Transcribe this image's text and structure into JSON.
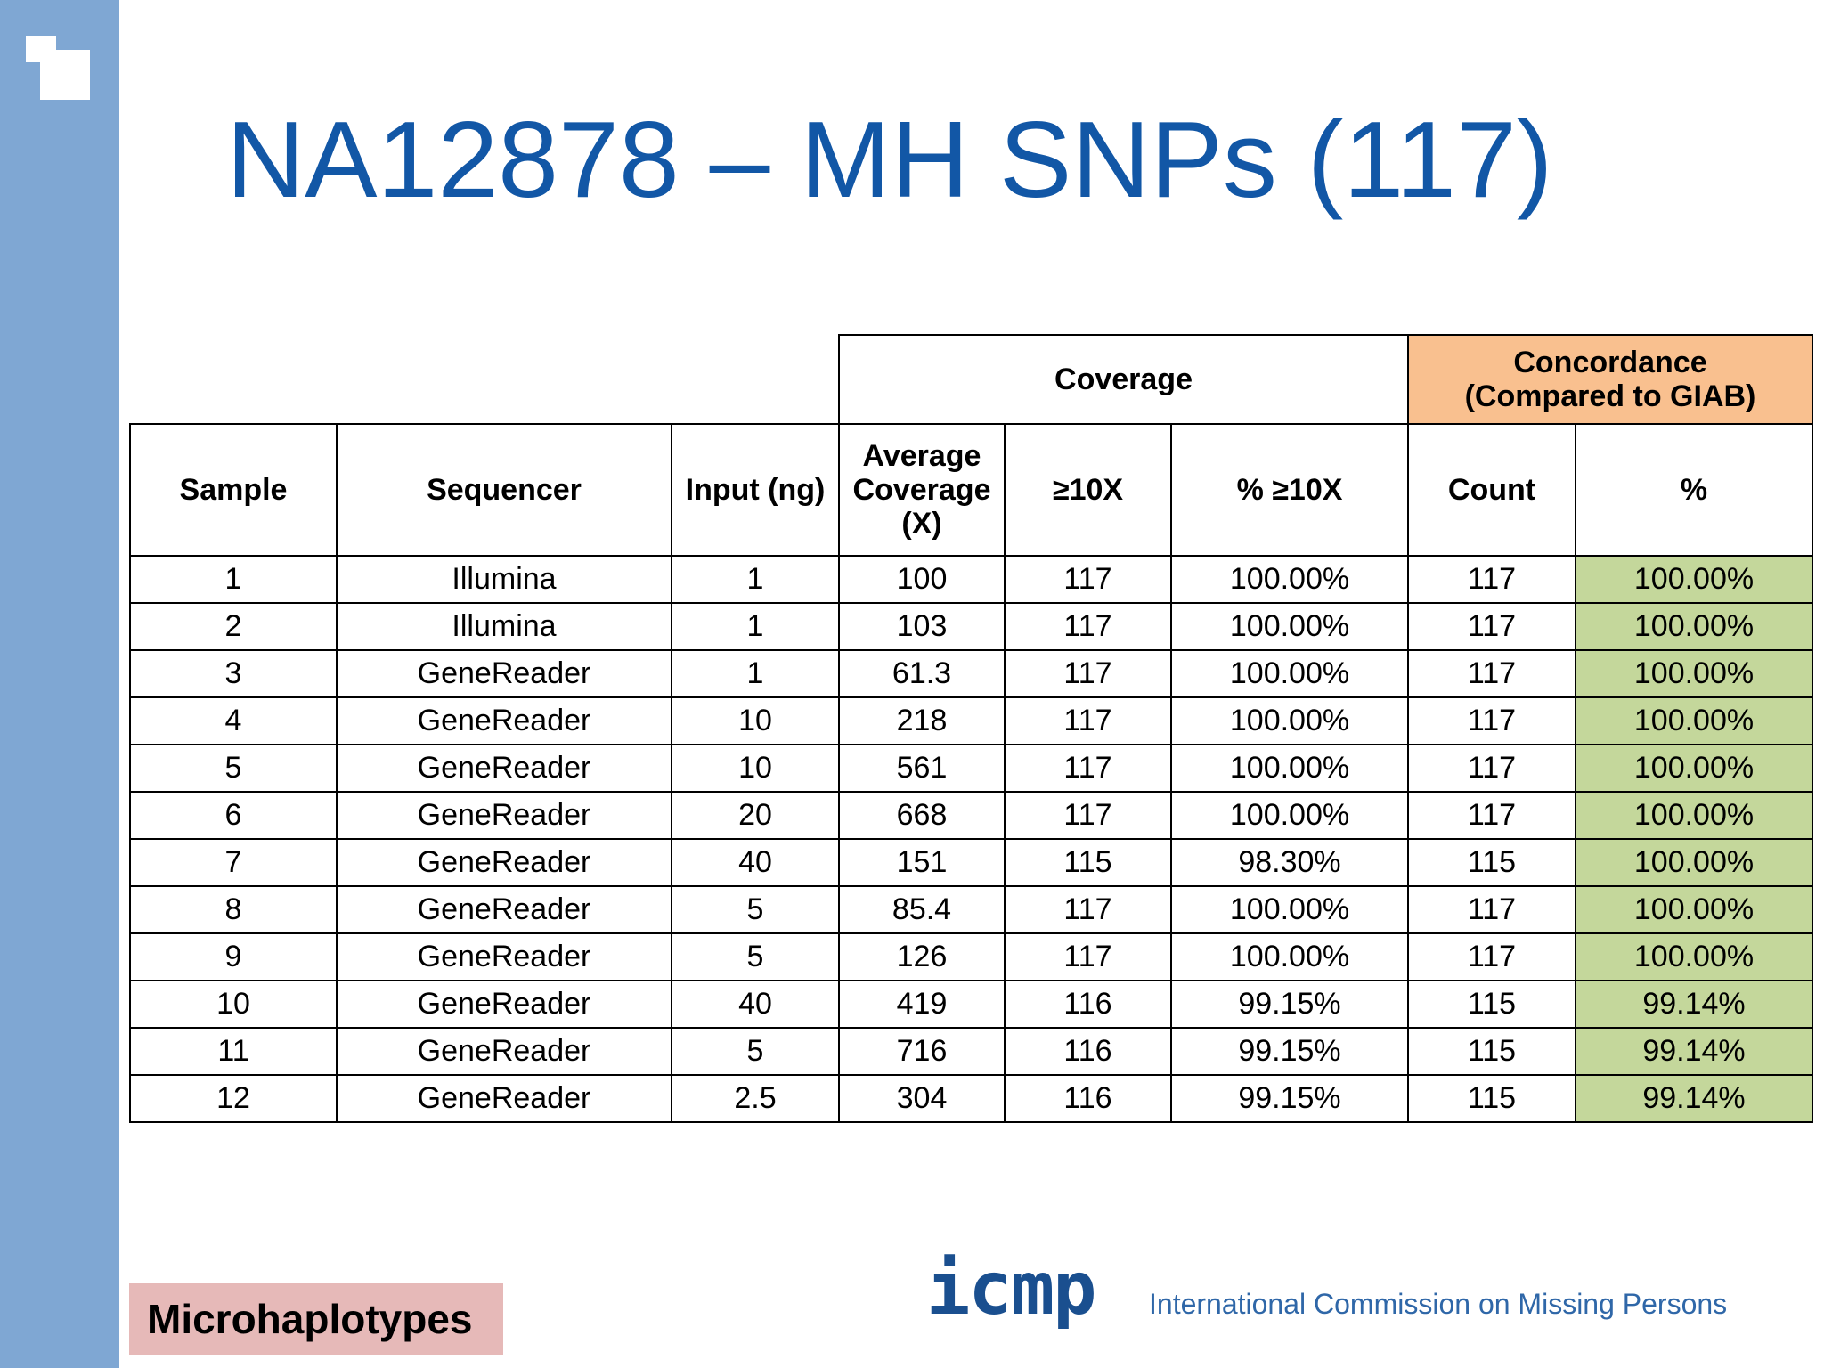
{
  "title": "NA12878 – MH SNPs (117)",
  "table": {
    "group_headers": {
      "coverage": "Coverage",
      "concordance": [
        "Concordance",
        "(Compared to GIAB)"
      ]
    },
    "columns": [
      "Sample",
      "Sequencer",
      "Input (ng)",
      "Average Coverage (X)",
      "≥10X",
      "% ≥10X",
      "Count",
      "%"
    ],
    "rows": [
      [
        "1",
        "Illumina",
        "1",
        "100",
        "117",
        "100.00%",
        "117",
        "100.00%"
      ],
      [
        "2",
        "Illumina",
        "1",
        "103",
        "117",
        "100.00%",
        "117",
        "100.00%"
      ],
      [
        "3",
        "GeneReader",
        "1",
        "61.3",
        "117",
        "100.00%",
        "117",
        "100.00%"
      ],
      [
        "4",
        "GeneReader",
        "10",
        "218",
        "117",
        "100.00%",
        "117",
        "100.00%"
      ],
      [
        "5",
        "GeneReader",
        "10",
        "561",
        "117",
        "100.00%",
        "117",
        "100.00%"
      ],
      [
        "6",
        "GeneReader",
        "20",
        "668",
        "117",
        "100.00%",
        "117",
        "100.00%"
      ],
      [
        "7",
        "GeneReader",
        "40",
        "151",
        "115",
        "98.30%",
        "115",
        "100.00%"
      ],
      [
        "8",
        "GeneReader",
        "5",
        "85.4",
        "117",
        "100.00%",
        "117",
        "100.00%"
      ],
      [
        "9",
        "GeneReader",
        "5",
        "126",
        "117",
        "100.00%",
        "117",
        "100.00%"
      ],
      [
        "10",
        "GeneReader",
        "40",
        "419",
        "116",
        "99.15%",
        "115",
        "99.14%"
      ],
      [
        "11",
        "GeneReader",
        "5",
        "716",
        "116",
        "99.15%",
        "115",
        "99.14%"
      ],
      [
        "12",
        "GeneReader",
        "2.5",
        "304",
        "116",
        "99.15%",
        "115",
        "99.14%"
      ]
    ]
  },
  "footer": {
    "tag": "Microhaplotypes",
    "logo": "icmp",
    "organization": "International Commission on Missing Persons"
  }
}
